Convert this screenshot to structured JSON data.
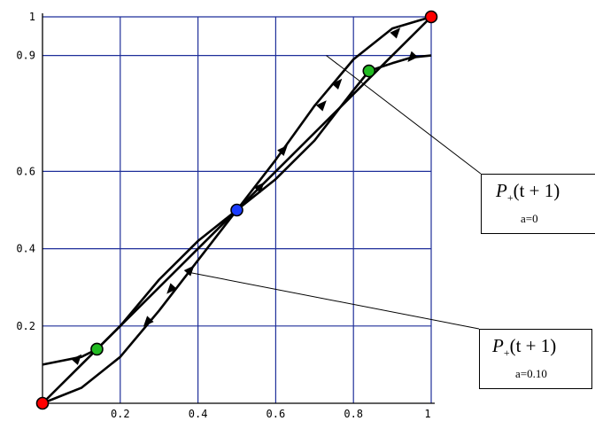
{
  "chart_data": {
    "type": "line",
    "xlim": [
      0,
      1
    ],
    "ylim": [
      0,
      1
    ],
    "grid": true,
    "x_ticks": [
      {
        "value": 0.2,
        "label": "0.2"
      },
      {
        "value": 0.4,
        "label": "0.4"
      },
      {
        "value": 0.6,
        "label": "0.6"
      },
      {
        "value": 0.8,
        "label": "0.8"
      },
      {
        "value": 1.0,
        "label": "1"
      }
    ],
    "y_ticks": [
      {
        "value": 0.2,
        "label": "0.2"
      },
      {
        "value": 0.4,
        "label": "0.4"
      },
      {
        "value": 0.6,
        "label": "0.6"
      },
      {
        "value": 0.9,
        "label": "0.9"
      },
      {
        "value": 1.0,
        "label": "1"
      }
    ],
    "series": [
      {
        "x": [
          0,
          0.1,
          0.2,
          0.3,
          0.4,
          0.5,
          0.6,
          0.7,
          0.8,
          0.9,
          1.0
        ],
        "y": [
          0,
          0.1,
          0.2,
          0.3,
          0.4,
          0.5,
          0.6,
          0.7,
          0.8,
          0.9,
          1.0
        ]
      },
      {
        "x": [
          0,
          0.1,
          0.2,
          0.3,
          0.4,
          0.5,
          0.6,
          0.7,
          0.8,
          0.9,
          1.0
        ],
        "y": [
          0,
          0.04,
          0.12,
          0.24,
          0.37,
          0.5,
          0.63,
          0.77,
          0.89,
          0.97,
          1.0
        ]
      },
      {
        "x": [
          0,
          0.05,
          0.1,
          0.14,
          0.2,
          0.3,
          0.4,
          0.5,
          0.6,
          0.7,
          0.8,
          0.84,
          0.9,
          0.95,
          1.0
        ],
        "y": [
          0.1,
          0.11,
          0.12,
          0.14,
          0.2,
          0.32,
          0.42,
          0.5,
          0.58,
          0.68,
          0.81,
          0.86,
          0.88,
          0.895,
          0.9
        ]
      }
    ],
    "arrows": [
      {
        "x": 0.09,
        "y": 0.115,
        "dir": 1
      },
      {
        "x": 0.27,
        "y": 0.21,
        "dir": -1
      },
      {
        "x": 0.33,
        "y": 0.295,
        "dir": -1
      },
      {
        "x": 0.56,
        "y": 0.56,
        "dir": 1
      },
      {
        "x": 0.62,
        "y": 0.656,
        "dir": 1
      },
      {
        "x": 0.72,
        "y": 0.772,
        "dir": 1
      },
      {
        "x": 0.76,
        "y": 0.828,
        "dir": 1
      },
      {
        "x": 0.91,
        "y": 0.96,
        "dir": 1
      },
      {
        "x": 0.95,
        "y": 0.895,
        "dir": -1
      },
      {
        "x": 0.38,
        "y": 0.345,
        "dir": 1
      }
    ],
    "fixed_points": [
      {
        "x": 0,
        "y": 0,
        "color": "#ff0000"
      },
      {
        "x": 1,
        "y": 1,
        "color": "#ff0000"
      },
      {
        "x": 0.5,
        "y": 0.5,
        "color": "#1a3cff"
      },
      {
        "x": 0.14,
        "y": 0.14,
        "color": "#22bb22"
      },
      {
        "x": 0.84,
        "y": 0.86,
        "color": "#22bb22"
      }
    ],
    "annotations": [
      {
        "label_main": "P",
        "label_sub": "+",
        "label_arg": "(t + 1)",
        "label_param": "a=0",
        "target_x": 0.73,
        "target_y": 0.9
      },
      {
        "label_main": "P",
        "label_sub": "+",
        "label_arg": "(t + 1)",
        "label_param": "a=0.10",
        "target_x": 0.37,
        "target_y": 0.34
      }
    ],
    "colors": {
      "grid": "#1f2f9a",
      "curve": "#000000",
      "axis": "#000000"
    }
  }
}
